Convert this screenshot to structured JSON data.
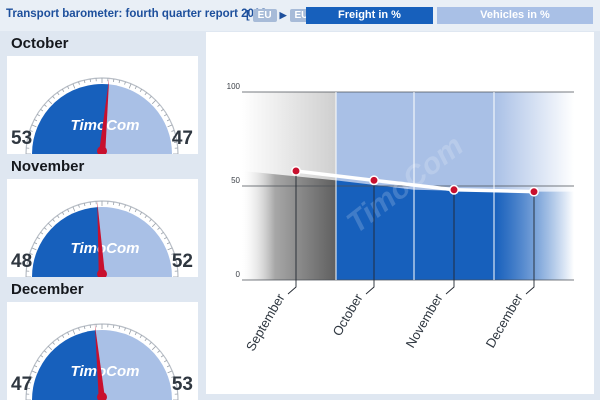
{
  "header": {
    "title": "Transport barometer: fourth quarter report 2013",
    "region_from": "EU",
    "region_to": "EU",
    "legend_freight": "Freight in %",
    "legend_vehicles": "Vehicles in %"
  },
  "gauges": [
    {
      "month": "October",
      "freight": 53,
      "vehicles": 47,
      "logo": "TimoCom"
    },
    {
      "month": "November",
      "freight": 48,
      "vehicles": 52,
      "logo": "TimoCom"
    },
    {
      "month": "December",
      "freight": 47,
      "vehicles": 53,
      "logo": "TimoCom"
    }
  ],
  "watermark": "TimoCom",
  "colors": {
    "freight": "#1760bc",
    "vehicles": "#a9c0e6",
    "needle": "#c8102e",
    "dark_gray": "#6f6f6f"
  },
  "chart_data": {
    "type": "area",
    "categories": [
      "September",
      "October",
      "November",
      "December"
    ],
    "series": [
      {
        "name": "Freight in %",
        "values": [
          58,
          53,
          48,
          47
        ]
      }
    ],
    "ylim": [
      0,
      100
    ],
    "yticks": [
      0,
      50,
      100
    ],
    "xlabel": "",
    "ylabel": "",
    "grid": true,
    "legend": "top"
  }
}
